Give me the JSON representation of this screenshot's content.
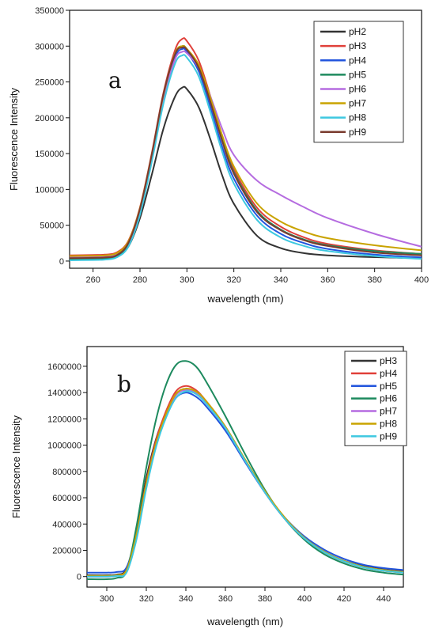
{
  "chart_data": [
    {
      "type": "line",
      "panel_label": "a",
      "xlabel": "wavelength (nm)",
      "ylabel": "Fluorescence Intensity",
      "xlim": [
        250,
        400
      ],
      "ylim": [
        -10000,
        350000
      ],
      "xticks": [
        260,
        280,
        300,
        320,
        340,
        360,
        380,
        400
      ],
      "yticks": [
        0,
        50000,
        100000,
        150000,
        200000,
        250000,
        300000,
        350000
      ],
      "legend_position": "top-right",
      "grid": false,
      "series": [
        {
          "name": "pH2",
          "color": "#333333",
          "x": [
            250,
            260,
            265,
            270,
            275,
            280,
            285,
            290,
            295,
            298,
            300,
            305,
            310,
            315,
            320,
            330,
            340,
            350,
            360,
            380,
            400
          ],
          "y": [
            3000,
            3500,
            4000,
            6000,
            20000,
            60000,
            120000,
            185000,
            230000,
            242000,
            240000,
            215000,
            170000,
            120000,
            80000,
            35000,
            18000,
            11000,
            8000,
            5500,
            4000
          ]
        },
        {
          "name": "pH3",
          "color": "#e0403a",
          "x": [
            250,
            260,
            265,
            270,
            275,
            280,
            285,
            290,
            295,
            298,
            300,
            305,
            310,
            315,
            320,
            330,
            340,
            350,
            360,
            380,
            400
          ],
          "y": [
            8000,
            8500,
            9000,
            12000,
            28000,
            75000,
            150000,
            235000,
            295000,
            310000,
            307000,
            280000,
            230000,
            175000,
            128000,
            74000,
            48000,
            33000,
            24000,
            15000,
            10000
          ]
        },
        {
          "name": "pH4",
          "color": "#2255dd",
          "x": [
            250,
            260,
            265,
            270,
            275,
            280,
            285,
            290,
            295,
            298,
            300,
            305,
            310,
            315,
            320,
            330,
            340,
            350,
            360,
            380,
            400
          ],
          "y": [
            2000,
            2500,
            3000,
            6000,
            22000,
            70000,
            145000,
            228000,
            285000,
            296000,
            292000,
            265000,
            215000,
            160000,
            115000,
            63000,
            38000,
            25000,
            17000,
            9000,
            5000
          ]
        },
        {
          "name": "pH5",
          "color": "#1d8a5e",
          "x": [
            250,
            260,
            265,
            270,
            275,
            280,
            285,
            290,
            295,
            298,
            300,
            305,
            310,
            315,
            320,
            330,
            340,
            350,
            360,
            380,
            400
          ],
          "y": [
            3000,
            3500,
            4000,
            7000,
            24000,
            72000,
            147000,
            232000,
            290000,
            300000,
            296000,
            272000,
            224000,
            170000,
            124000,
            70000,
            44000,
            30000,
            22000,
            14000,
            10000
          ]
        },
        {
          "name": "pH6",
          "color": "#b56ce0",
          "x": [
            250,
            260,
            265,
            270,
            275,
            280,
            285,
            290,
            295,
            298,
            300,
            305,
            310,
            315,
            320,
            330,
            340,
            350,
            360,
            380,
            400
          ],
          "y": [
            5000,
            5500,
            6000,
            9000,
            25000,
            70000,
            142000,
            225000,
            282000,
            292000,
            290000,
            270000,
            230000,
            185000,
            148000,
            112000,
            92000,
            75000,
            60000,
            38000,
            20000
          ]
        },
        {
          "name": "pH7",
          "color": "#c9a300",
          "x": [
            250,
            260,
            265,
            270,
            275,
            280,
            285,
            290,
            295,
            298,
            300,
            305,
            310,
            315,
            320,
            330,
            340,
            350,
            360,
            380,
            400
          ],
          "y": [
            7000,
            7500,
            8000,
            11000,
            27000,
            74000,
            148000,
            232000,
            290000,
            300000,
            296000,
            274000,
            228000,
            176000,
            132000,
            80000,
            55000,
            41000,
            32000,
            22000,
            15000
          ]
        },
        {
          "name": "pH8",
          "color": "#3ec8e0",
          "x": [
            250,
            260,
            265,
            270,
            275,
            280,
            285,
            290,
            295,
            298,
            300,
            305,
            310,
            315,
            320,
            330,
            340,
            350,
            360,
            380,
            400
          ],
          "y": [
            1000,
            1500,
            2000,
            5000,
            20000,
            65000,
            138000,
            220000,
            276000,
            287000,
            284000,
            258000,
            208000,
            153000,
            108000,
            57000,
            33000,
            21000,
            14000,
            7000,
            3000
          ]
        },
        {
          "name": "pH9",
          "color": "#7a3b2e",
          "x": [
            250,
            260,
            265,
            270,
            275,
            280,
            285,
            290,
            295,
            298,
            300,
            305,
            310,
            315,
            320,
            330,
            340,
            350,
            360,
            380,
            400
          ],
          "y": [
            4000,
            4500,
            5000,
            8000,
            25000,
            73000,
            148000,
            233000,
            289000,
            298000,
            295000,
            270000,
            222000,
            168000,
            122000,
            68000,
            43000,
            29000,
            21000,
            12000,
            8000
          ]
        }
      ]
    },
    {
      "type": "line",
      "panel_label": "b",
      "xlabel": "wavelength (nm)",
      "ylabel": "Fluorescence Intensity",
      "xlim": [
        290,
        450
      ],
      "ylim": [
        -80000,
        1750000
      ],
      "xticks": [
        300,
        320,
        340,
        360,
        380,
        400,
        420,
        440
      ],
      "yticks": [
        0,
        200000,
        400000,
        600000,
        800000,
        1000000,
        1200000,
        1400000,
        1600000
      ],
      "legend_position": "top-right",
      "grid": false,
      "series": [
        {
          "name": "pH3",
          "color": "#333333",
          "x": [
            290,
            300,
            305,
            310,
            315,
            320,
            325,
            330,
            335,
            340,
            345,
            350,
            360,
            370,
            380,
            390,
            400,
            410,
            420,
            430,
            440,
            450
          ],
          "y": [
            10000,
            10000,
            15000,
            60000,
            350000,
            750000,
            1050000,
            1250000,
            1390000,
            1430000,
            1400000,
            1330000,
            1130000,
            880000,
            640000,
            440000,
            290000,
            190000,
            120000,
            80000,
            55000,
            40000
          ]
        },
        {
          "name": "pH4",
          "color": "#e0403a",
          "x": [
            290,
            300,
            305,
            310,
            315,
            320,
            325,
            330,
            335,
            340,
            345,
            350,
            360,
            370,
            380,
            390,
            400,
            410,
            420,
            430,
            440,
            450
          ],
          "y": [
            0,
            0,
            8000,
            50000,
            320000,
            720000,
            1040000,
            1260000,
            1410000,
            1450000,
            1420000,
            1340000,
            1140000,
            880000,
            640000,
            440000,
            290000,
            185000,
            115000,
            70000,
            45000,
            30000
          ]
        },
        {
          "name": "pH5",
          "color": "#2255dd",
          "x": [
            290,
            300,
            305,
            310,
            315,
            320,
            325,
            330,
            335,
            340,
            345,
            350,
            360,
            370,
            380,
            390,
            400,
            410,
            420,
            430,
            440,
            450
          ],
          "y": [
            30000,
            30000,
            35000,
            70000,
            320000,
            700000,
            1000000,
            1220000,
            1360000,
            1400000,
            1370000,
            1300000,
            1110000,
            870000,
            640000,
            450000,
            305000,
            205000,
            135000,
            90000,
            65000,
            50000
          ]
        },
        {
          "name": "pH6",
          "color": "#1d8a5e",
          "x": [
            290,
            300,
            305,
            310,
            315,
            320,
            325,
            330,
            335,
            340,
            345,
            350,
            360,
            370,
            380,
            390,
            400,
            410,
            420,
            430,
            440,
            450
          ],
          "y": [
            -20000,
            -20000,
            -10000,
            40000,
            380000,
            830000,
            1200000,
            1460000,
            1610000,
            1640000,
            1600000,
            1490000,
            1220000,
            930000,
            660000,
            440000,
            280000,
            170000,
            100000,
            55000,
            30000,
            15000
          ]
        },
        {
          "name": "pH7",
          "color": "#b56ce0",
          "x": [
            290,
            300,
            305,
            310,
            315,
            320,
            325,
            330,
            335,
            340,
            345,
            350,
            360,
            370,
            380,
            390,
            400,
            410,
            420,
            430,
            440,
            450
          ],
          "y": [
            0,
            0,
            8000,
            45000,
            310000,
            700000,
            1010000,
            1230000,
            1380000,
            1420000,
            1400000,
            1330000,
            1130000,
            880000,
            640000,
            440000,
            290000,
            190000,
            120000,
            75000,
            50000,
            35000
          ]
        },
        {
          "name": "pH8",
          "color": "#c9a300",
          "x": [
            290,
            300,
            305,
            310,
            315,
            320,
            325,
            330,
            335,
            340,
            345,
            350,
            360,
            370,
            380,
            390,
            400,
            410,
            420,
            430,
            440,
            450
          ],
          "y": [
            5000,
            5000,
            10000,
            50000,
            320000,
            710000,
            1020000,
            1240000,
            1390000,
            1430000,
            1410000,
            1340000,
            1140000,
            890000,
            650000,
            450000,
            295000,
            190000,
            120000,
            75000,
            50000,
            35000
          ]
        },
        {
          "name": "pH9",
          "color": "#3ec8e0",
          "x": [
            290,
            300,
            305,
            310,
            315,
            320,
            325,
            330,
            335,
            340,
            345,
            350,
            360,
            370,
            380,
            390,
            400,
            410,
            420,
            430,
            440,
            450
          ],
          "y": [
            0,
            0,
            5000,
            30000,
            280000,
            670000,
            990000,
            1210000,
            1360000,
            1410000,
            1390000,
            1320000,
            1130000,
            880000,
            640000,
            440000,
            290000,
            185000,
            115000,
            70000,
            45000,
            30000
          ]
        }
      ]
    }
  ]
}
